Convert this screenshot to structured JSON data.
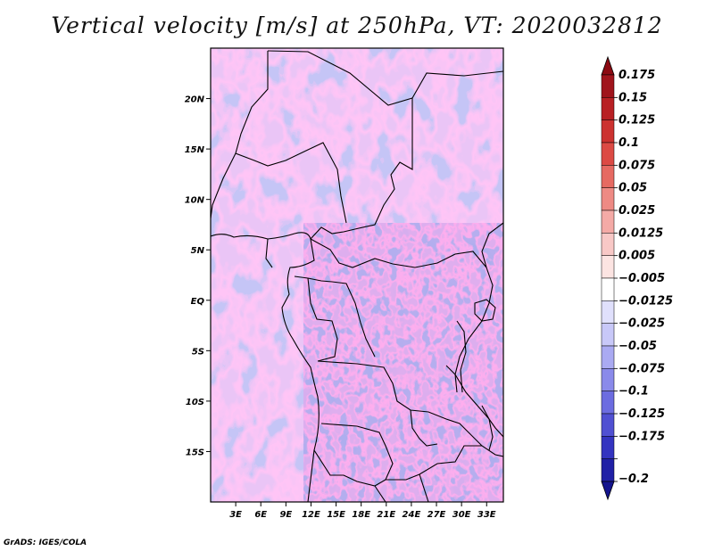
{
  "title": "Vertical velocity [m/s] at 250hPa, VT: 2020032812",
  "footer": "GrADS: IGES/COLA",
  "map": {
    "lat_range": [
      -20,
      25
    ],
    "lon_range": [
      0,
      35
    ],
    "lat_ticks": [
      {
        "value": 20,
        "label": "20N"
      },
      {
        "value": 15,
        "label": "15N"
      },
      {
        "value": 10,
        "label": "10N"
      },
      {
        "value": 5,
        "label": "5N"
      },
      {
        "value": 0,
        "label": "EQ"
      },
      {
        "value": -5,
        "label": "5S"
      },
      {
        "value": -10,
        "label": "10S"
      },
      {
        "value": -15,
        "label": "15S"
      }
    ],
    "lon_ticks": [
      {
        "value": 3,
        "label": "3E"
      },
      {
        "value": 6,
        "label": "6E"
      },
      {
        "value": 9,
        "label": "9E"
      },
      {
        "value": 12,
        "label": "12E"
      },
      {
        "value": 15,
        "label": "15E"
      },
      {
        "value": 18,
        "label": "18E"
      },
      {
        "value": 21,
        "label": "21E"
      },
      {
        "value": 24,
        "label": "24E"
      },
      {
        "value": 27,
        "label": "27E"
      },
      {
        "value": 30,
        "label": "30E"
      },
      {
        "value": 33,
        "label": "33E"
      }
    ]
  },
  "colorbar": {
    "levels": [
      {
        "label": "0.175",
        "color": "#a0141c"
      },
      {
        "label": "0.15",
        "color": "#b82024"
      },
      {
        "label": "0.125",
        "color": "#cc3230"
      },
      {
        "label": "0.1",
        "color": "#dc4a44"
      },
      {
        "label": "0.075",
        "color": "#e66a62"
      },
      {
        "label": "0.05",
        "color": "#ee8a84"
      },
      {
        "label": "0.025",
        "color": "#f4aaa6"
      },
      {
        "label": "0.0125",
        "color": "#f8c8c6"
      },
      {
        "label": "0.005",
        "color": "#fce4e2"
      },
      {
        "label": "−0.005",
        "color": "#ffffff"
      },
      {
        "label": "−0.0125",
        "color": "#e0e0fc"
      },
      {
        "label": "−0.025",
        "color": "#c8c8f8"
      },
      {
        "label": "−0.05",
        "color": "#aaaaf2"
      },
      {
        "label": "−0.075",
        "color": "#8a8aea"
      },
      {
        "label": "−0.1",
        "color": "#6c6ce0"
      },
      {
        "label": "−0.125",
        "color": "#5050d2"
      },
      {
        "label": "−0.175",
        "color": "#3434c0"
      },
      {
        "label": "−0.2",
        "color": "#2020a6"
      }
    ],
    "top_color": "#8c0a12",
    "bottom_color": "#14148e"
  }
}
